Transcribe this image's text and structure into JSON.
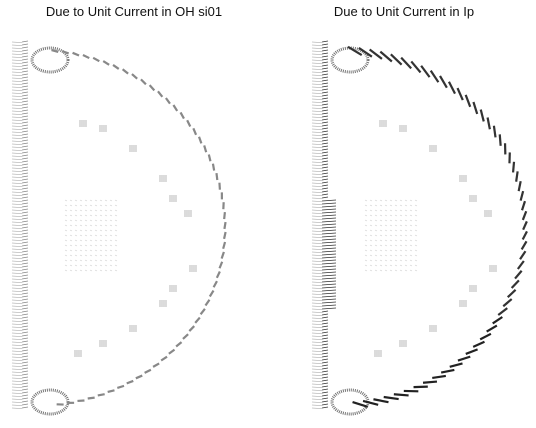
{
  "panels": [
    {
      "title": "Due to Unit Current in OH si01"
    },
    {
      "title": "Due to Unit Current in Ip"
    }
  ]
}
